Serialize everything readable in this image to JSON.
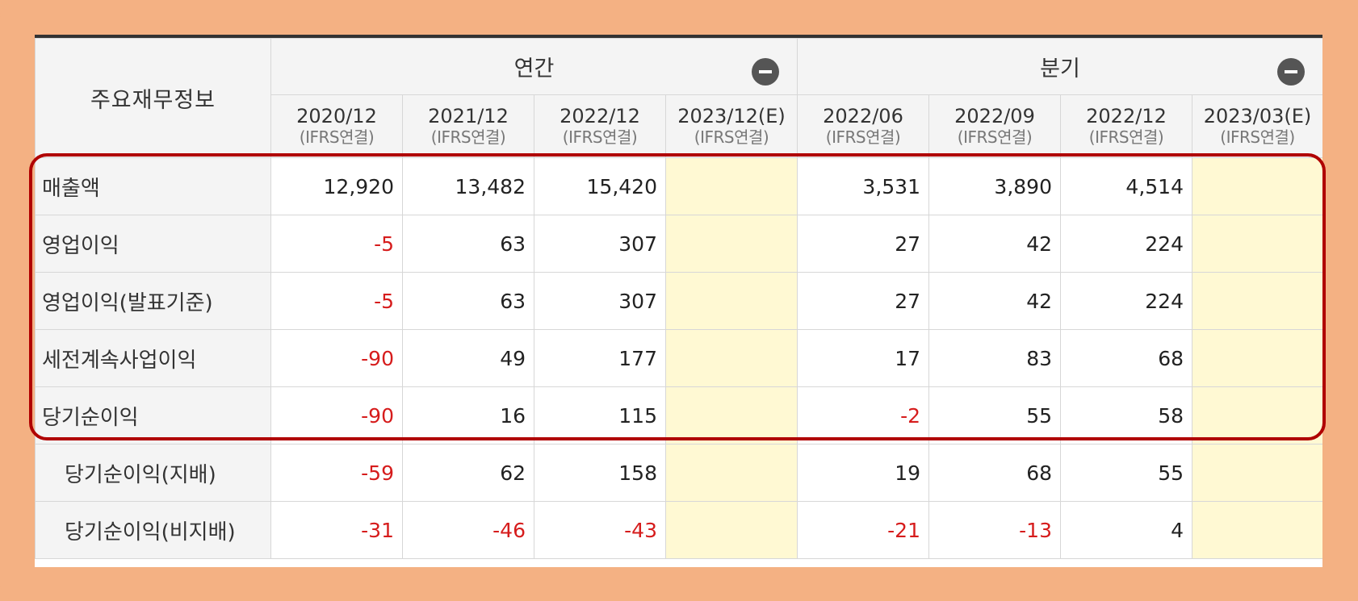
{
  "header": {
    "title": "주요재무정보",
    "annual_label": "연간",
    "quarterly_label": "분기"
  },
  "periods": [
    {
      "date": "2020/12",
      "basis": "(IFRS연결)"
    },
    {
      "date": "2021/12",
      "basis": "(IFRS연결)"
    },
    {
      "date": "2022/12",
      "basis": "(IFRS연결)"
    },
    {
      "date": "2023/12(E)",
      "basis": "(IFRS연결)"
    },
    {
      "date": "2022/06",
      "basis": "(IFRS연결)"
    },
    {
      "date": "2022/09",
      "basis": "(IFRS연결)"
    },
    {
      "date": "2022/12",
      "basis": "(IFRS연결)"
    },
    {
      "date": "2023/03(E)",
      "basis": "(IFRS연결)"
    }
  ],
  "rows": [
    {
      "label": "매출액",
      "values": [
        "12,920",
        "13,482",
        "15,420",
        "",
        "3,531",
        "3,890",
        "4,514",
        ""
      ]
    },
    {
      "label": "영업이익",
      "values": [
        "-5",
        "63",
        "307",
        "",
        "27",
        "42",
        "224",
        ""
      ]
    },
    {
      "label": "영업이익(발표기준)",
      "values": [
        "-5",
        "63",
        "307",
        "",
        "27",
        "42",
        "224",
        ""
      ]
    },
    {
      "label": "세전계속사업이익",
      "values": [
        "-90",
        "49",
        "177",
        "",
        "17",
        "83",
        "68",
        ""
      ]
    },
    {
      "label": "당기순이익",
      "values": [
        "-90",
        "16",
        "115",
        "",
        "-2",
        "55",
        "58",
        ""
      ]
    },
    {
      "label": "당기순이익(지배)",
      "values": [
        "-59",
        "62",
        "158",
        "",
        "19",
        "68",
        "55",
        ""
      ]
    },
    {
      "label": "당기순이익(비지배)",
      "values": [
        "-31",
        "-46",
        "-43",
        "",
        "-21",
        "-13",
        "4",
        ""
      ]
    }
  ],
  "colors": {
    "negative": "#d61c1c",
    "estimate_bg": "#fff9d3",
    "highlight_border": "#b00000",
    "frame": "#f4b183"
  }
}
